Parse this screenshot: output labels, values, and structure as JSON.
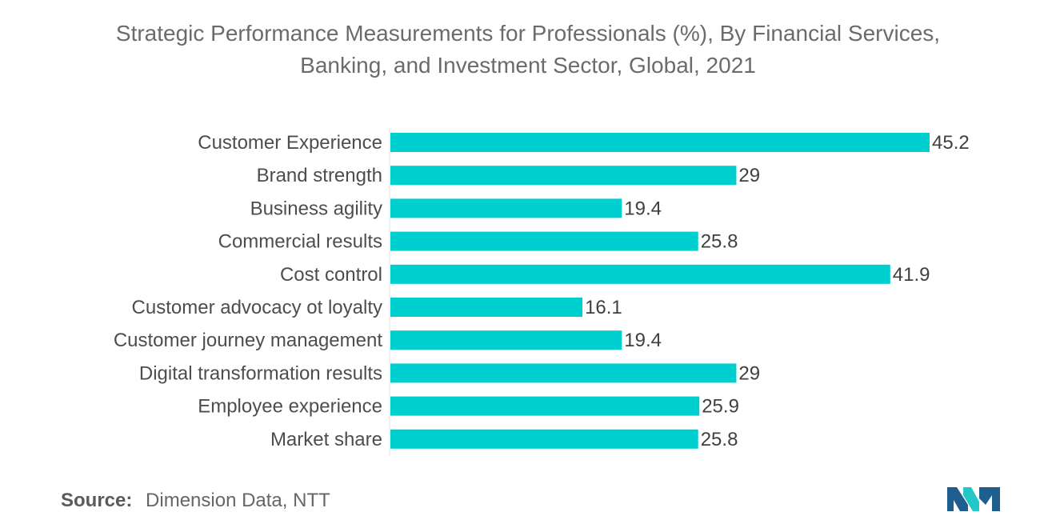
{
  "chart_data": {
    "type": "bar",
    "orientation": "horizontal",
    "title": "Strategic Performance Measurements for Professionals (%), By Financial Services, Banking, and Investment Sector, Global, 2021",
    "title_lines": [
      "Strategic Performance Measurements for Professionals (%), By Financial Services,",
      "Banking, and Investment Sector, Global, 2021"
    ],
    "categories": [
      "Customer Experience",
      "Brand strength",
      "Business agility",
      "Commercial results",
      "Cost control",
      "Customer advocacy ot loyalty",
      "Customer journey management",
      "Digital transformation results",
      "Employee experience",
      "Market share"
    ],
    "values": [
      45.2,
      29,
      19.4,
      25.8,
      41.9,
      16.1,
      19.4,
      29,
      25.9,
      25.8
    ],
    "value_labels": [
      "45.2",
      "29",
      "19.4",
      "25.8",
      "41.9",
      "16.1",
      "19.4",
      "29",
      "25.9",
      "25.8"
    ],
    "xlim": [
      0,
      45.2
    ],
    "grid": false,
    "bar_color": "#00cfcf"
  },
  "source": {
    "label": "Source:",
    "text": "Dimension Data, NTT"
  },
  "colors": {
    "bar": "#00cfcf",
    "logo_dark": "#1f5f8f",
    "logo_light": "#23c7c7"
  }
}
